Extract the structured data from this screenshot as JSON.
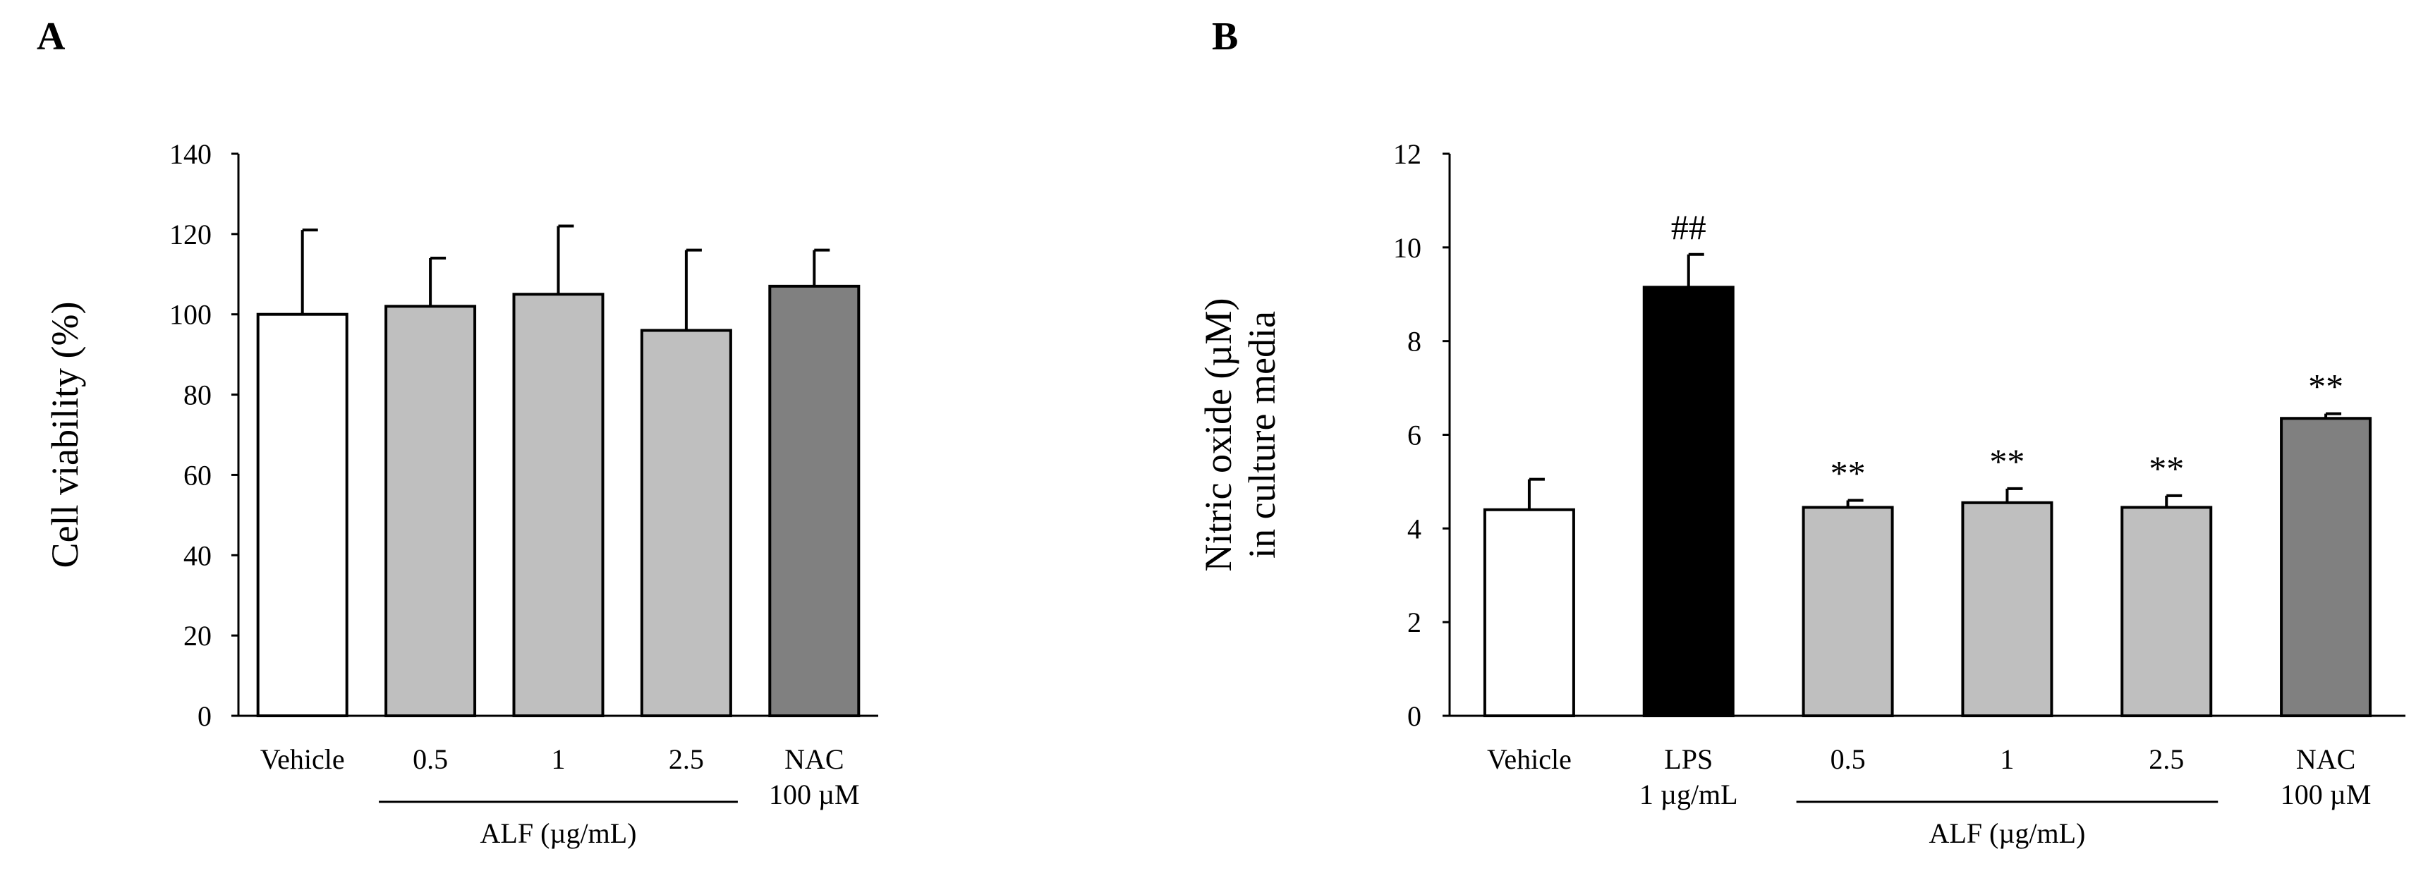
{
  "chart_data": [
    {
      "panel": "A",
      "type": "bar",
      "ylabel_lines": [
        "Cell viability (%)"
      ],
      "ylim": [
        0,
        140
      ],
      "yticks": [
        0,
        20,
        40,
        60,
        80,
        100,
        120,
        140
      ],
      "bars": [
        {
          "label": [
            "Vehicle"
          ],
          "value": 100,
          "error": 21,
          "color": "#ffffff",
          "annotation": ""
        },
        {
          "label": [
            "0.5"
          ],
          "value": 102,
          "error": 12,
          "color": "#bfbfbf",
          "annotation": ""
        },
        {
          "label": [
            "1"
          ],
          "value": 105,
          "error": 17,
          "color": "#bfbfbf",
          "annotation": ""
        },
        {
          "label": [
            "2.5"
          ],
          "value": 96,
          "error": 20,
          "color": "#bfbfbf",
          "annotation": ""
        },
        {
          "label": [
            "NAC",
            "100 µM"
          ],
          "value": 107,
          "error": 9,
          "color": "#808080",
          "annotation": ""
        }
      ],
      "group": {
        "label": "ALF (µg/mL)",
        "from": 1,
        "to": 3
      }
    },
    {
      "panel": "B",
      "type": "bar",
      "ylabel_lines": [
        "Nitric oxide (µM)",
        "in culture media"
      ],
      "ylim": [
        0,
        12
      ],
      "yticks": [
        0,
        2,
        4,
        6,
        8,
        10,
        12
      ],
      "bars": [
        {
          "label": [
            "Vehicle"
          ],
          "value": 4.4,
          "error": 0.65,
          "color": "#ffffff",
          "annotation": ""
        },
        {
          "label": [
            "LPS",
            "1 µg/mL"
          ],
          "value": 9.15,
          "error": 0.7,
          "color": "#000000",
          "annotation": "##"
        },
        {
          "label": [
            "0.5"
          ],
          "value": 4.45,
          "error": 0.15,
          "color": "#bfbfbf",
          "annotation": "**"
        },
        {
          "label": [
            "1"
          ],
          "value": 4.55,
          "error": 0.3,
          "color": "#bfbfbf",
          "annotation": "**"
        },
        {
          "label": [
            "2.5"
          ],
          "value": 4.45,
          "error": 0.25,
          "color": "#bfbfbf",
          "annotation": "**"
        },
        {
          "label": [
            "NAC",
            "100 µM"
          ],
          "value": 6.35,
          "error": 0.1,
          "color": "#808080",
          "annotation": "**"
        }
      ],
      "group": {
        "label": "ALF (µg/mL)",
        "from": 2,
        "to": 4
      }
    }
  ]
}
